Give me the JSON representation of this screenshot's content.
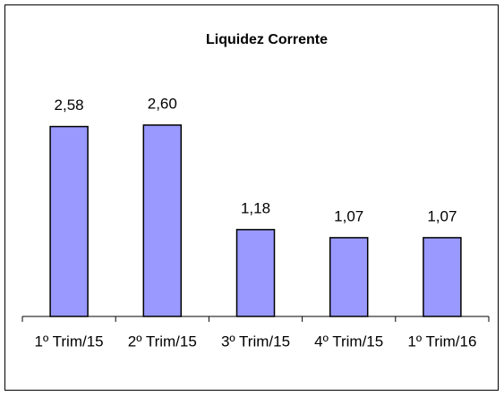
{
  "chart_data": {
    "type": "bar",
    "title": "Liquidez Corrente",
    "categories": [
      "1º Trim/15",
      "2º Trim/15",
      "3º Trim/15",
      "4º Trim/15",
      "1º Trim/16"
    ],
    "values": [
      2.58,
      2.6,
      1.18,
      1.07,
      1.07
    ],
    "value_labels": [
      "2,58",
      "2,60",
      "1,18",
      "1,07",
      "1,07"
    ],
    "color": "#9999ff",
    "ylim": [
      0,
      3
    ]
  }
}
